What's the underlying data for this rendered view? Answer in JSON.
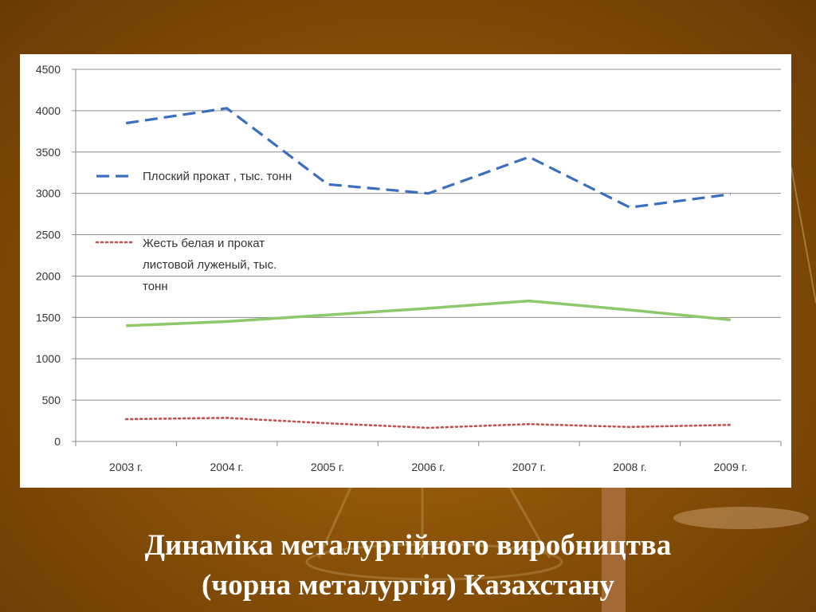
{
  "slide": {
    "title_line1": "Динаміка металургійного виробництва",
    "title_line2": "(чорна металургія) Казахстану"
  },
  "chart_data": {
    "type": "line",
    "categories": [
      "2003 г.",
      "2004 г.",
      "2005 г.",
      "2006 г.",
      "2007 г.",
      "2008 г.",
      "2009 г."
    ],
    "ylim": [
      0,
      4500
    ],
    "yticks": [
      0,
      500,
      1000,
      1500,
      2000,
      2500,
      3000,
      3500,
      4000,
      4500
    ],
    "grid": true,
    "legend_position": "left",
    "series": [
      {
        "name": "Плоский прокат , тыс. тонн",
        "values": [
          3850,
          4030,
          3110,
          3000,
          3440,
          2830,
          2990
        ],
        "color": "#3a6fbf",
        "style": "dashed"
      },
      {
        "name": "Жесть белая и прокат листовой луженый, тыс. тонн",
        "legend_lines": [
          "Жесть белая и прокат",
          "листовой луженый, тыс.",
          "тонн"
        ],
        "values": [
          270,
          285,
          220,
          165,
          210,
          175,
          200
        ],
        "color": "#c0504d",
        "style": "dotted"
      },
      {
        "values": [
          1400,
          1450,
          1530,
          1610,
          1700,
          1590,
          1470
        ],
        "color": "#8ec86a",
        "style": "solid"
      }
    ]
  }
}
